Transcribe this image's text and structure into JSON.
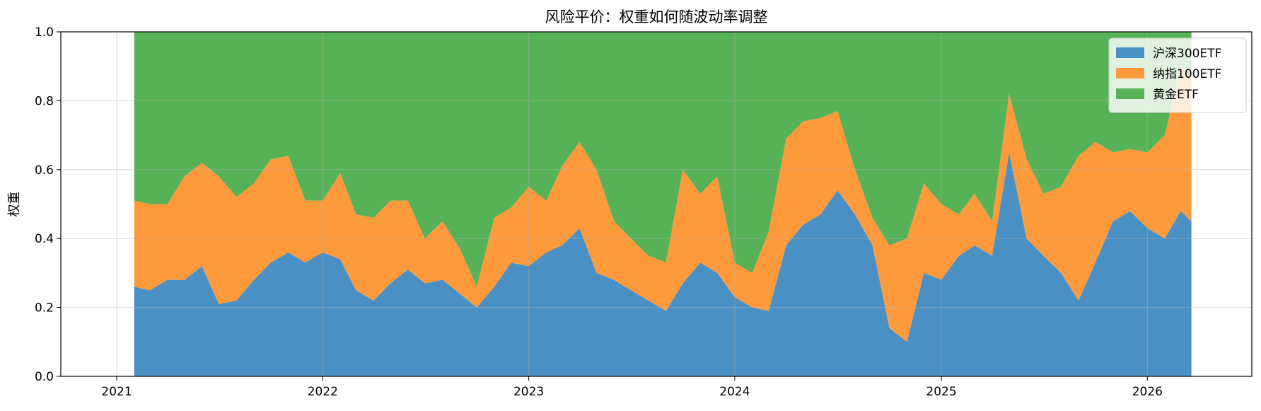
{
  "chart_data": {
    "type": "area",
    "stacked": true,
    "title": "风险平价：权重如何随波动率调整",
    "xlabel": "",
    "ylabel": "权重",
    "ylim": [
      0,
      1
    ],
    "xlim": [
      "2020-09-24",
      "2026-07-05"
    ],
    "grid": true,
    "legend_position": "top-right",
    "x_ticks": [
      "2021",
      "2022",
      "2023",
      "2024",
      "2025",
      "2026"
    ],
    "y_ticks": [
      "0.0",
      "0.2",
      "0.4",
      "0.6",
      "0.8",
      "1.0"
    ],
    "x": [
      "2021-02-01",
      "2021-03-01",
      "2021-04-01",
      "2021-05-01",
      "2021-06-01",
      "2021-07-01",
      "2021-08-01",
      "2021-09-01",
      "2021-10-01",
      "2021-11-01",
      "2021-12-01",
      "2022-01-01",
      "2022-02-01",
      "2022-03-01",
      "2022-04-01",
      "2022-05-01",
      "2022-06-01",
      "2022-07-01",
      "2022-08-01",
      "2022-09-01",
      "2022-10-01",
      "2022-11-01",
      "2022-12-01",
      "2023-01-01",
      "2023-02-01",
      "2023-03-01",
      "2023-04-01",
      "2023-05-01",
      "2023-06-01",
      "2023-07-01",
      "2023-08-01",
      "2023-09-01",
      "2023-10-01",
      "2023-11-01",
      "2023-12-01",
      "2024-01-01",
      "2024-02-01",
      "2024-03-01",
      "2024-04-01",
      "2024-05-01",
      "2024-06-01",
      "2024-07-01",
      "2024-08-01",
      "2024-09-01",
      "2024-10-01",
      "2024-11-01",
      "2024-12-01",
      "2025-01-01",
      "2025-02-01",
      "2025-03-01",
      "2025-04-01",
      "2025-05-01",
      "2025-06-01",
      "2025-07-01",
      "2025-08-01",
      "2025-09-01",
      "2025-10-01",
      "2025-11-01",
      "2025-12-01",
      "2026-01-01",
      "2026-02-01",
      "2026-03-01",
      "2026-03-20"
    ],
    "series": [
      {
        "name": "沪深300ETF",
        "color": "#4a90c4",
        "values": [
          0.26,
          0.25,
          0.28,
          0.28,
          0.32,
          0.21,
          0.22,
          0.28,
          0.33,
          0.36,
          0.33,
          0.36,
          0.34,
          0.25,
          0.22,
          0.27,
          0.31,
          0.27,
          0.28,
          0.24,
          0.2,
          0.26,
          0.33,
          0.32,
          0.36,
          0.38,
          0.43,
          0.3,
          0.28,
          0.25,
          0.22,
          0.19,
          0.27,
          0.33,
          0.3,
          0.23,
          0.2,
          0.19,
          0.38,
          0.44,
          0.47,
          0.54,
          0.47,
          0.38,
          0.14,
          0.1,
          0.3,
          0.28,
          0.35,
          0.38,
          0.35,
          0.65,
          0.4,
          0.35,
          0.3,
          0.22,
          0.33,
          0.45,
          0.48,
          0.43,
          0.4,
          0.48,
          0.45
        ]
      },
      {
        "name": "纳指100ETF",
        "color": "#ff9a3c",
        "values": [
          0.25,
          0.25,
          0.22,
          0.3,
          0.3,
          0.37,
          0.3,
          0.28,
          0.3,
          0.28,
          0.18,
          0.15,
          0.25,
          0.22,
          0.24,
          0.24,
          0.2,
          0.13,
          0.17,
          0.13,
          0.06,
          0.2,
          0.16,
          0.23,
          0.15,
          0.23,
          0.25,
          0.3,
          0.17,
          0.15,
          0.13,
          0.14,
          0.33,
          0.2,
          0.28,
          0.1,
          0.1,
          0.23,
          0.31,
          0.3,
          0.28,
          0.23,
          0.13,
          0.08,
          0.24,
          0.3,
          0.26,
          0.22,
          0.12,
          0.15,
          0.1,
          0.17,
          0.23,
          0.18,
          0.25,
          0.42,
          0.35,
          0.2,
          0.18,
          0.22,
          0.3,
          0.42,
          0.42
        ]
      },
      {
        "name": "黄金ETF",
        "color": "#57b257",
        "values": [
          0.49,
          0.5,
          0.5,
          0.42,
          0.38,
          0.42,
          0.48,
          0.44,
          0.37,
          0.36,
          0.49,
          0.49,
          0.41,
          0.53,
          0.54,
          0.49,
          0.49,
          0.6,
          0.55,
          0.63,
          0.74,
          0.54,
          0.51,
          0.45,
          0.49,
          0.39,
          0.32,
          0.4,
          0.55,
          0.6,
          0.65,
          0.67,
          0.4,
          0.47,
          0.42,
          0.67,
          0.7,
          0.58,
          0.31,
          0.26,
          0.25,
          0.23,
          0.4,
          0.54,
          0.62,
          0.6,
          0.44,
          0.5,
          0.53,
          0.47,
          0.55,
          0.18,
          0.37,
          0.47,
          0.45,
          0.36,
          0.32,
          0.35,
          0.34,
          0.35,
          0.3,
          0.1,
          0.13
        ]
      }
    ]
  }
}
